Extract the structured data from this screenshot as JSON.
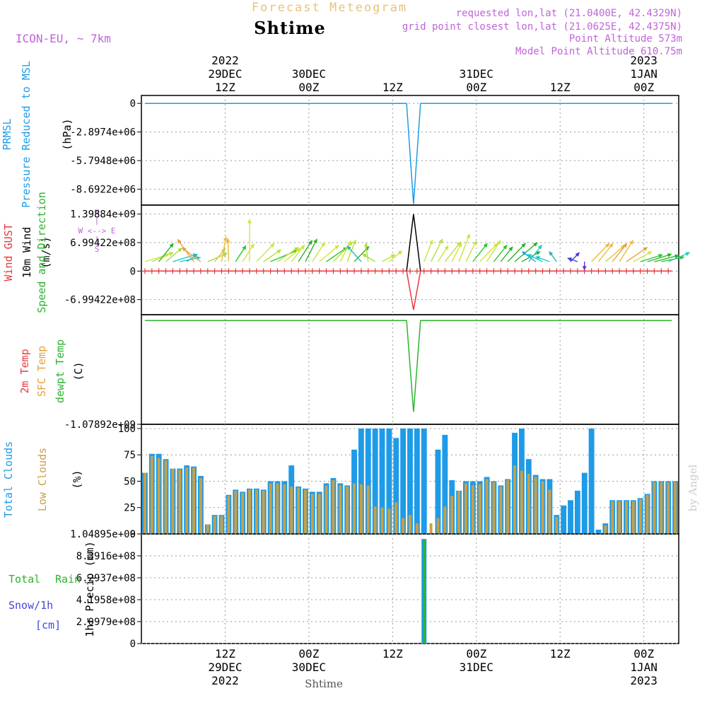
{
  "header": {
    "product": "Forecast Meteogram",
    "location": "Shtime",
    "model": "ICON-EU, ~ 7km",
    "requested": "requested lon,lat (21.0400E, 42.4329N)",
    "gridpoint": "grid point closest lon,lat (21.0625E, 42.4375N)",
    "point_alt": "Point Altitude 573m",
    "model_alt": "Model Point Altitude 610.75m",
    "footer_location": "Shtime",
    "credit": "by Angel"
  },
  "time_axis": {
    "top": [
      {
        "t": 12,
        "lines": [
          "2022",
          "29DEC",
          "12Z"
        ]
      },
      {
        "t": 24,
        "lines": [
          "30DEC",
          "00Z"
        ]
      },
      {
        "t": 36,
        "lines": [
          "12Z"
        ]
      },
      {
        "t": 48,
        "lines": [
          "31DEC",
          "00Z"
        ]
      },
      {
        "t": 60,
        "lines": [
          "12Z"
        ]
      },
      {
        "t": 72,
        "lines": [
          "2023",
          "1JAN",
          "00Z"
        ]
      }
    ],
    "bottom": [
      {
        "t": 12,
        "lines": [
          "12Z",
          "29DEC",
          "2022"
        ]
      },
      {
        "t": 24,
        "lines": [
          "00Z",
          "30DEC"
        ]
      },
      {
        "t": 36,
        "lines": [
          "12Z"
        ]
      },
      {
        "t": 48,
        "lines": [
          "00Z",
          "31DEC"
        ]
      },
      {
        "t": 60,
        "lines": [
          "12Z"
        ]
      },
      {
        "t": 72,
        "lines": [
          "00Z",
          "1JAN",
          "2023"
        ]
      }
    ]
  },
  "chart_data": [
    {
      "type": "line",
      "title": "",
      "ylabels": [
        "PRMSL",
        "Pressure Reduced to MSL",
        "(hPa)"
      ],
      "yticks": [
        "0",
        "-2.8974e+06",
        "-5.7948e+06",
        "-8.6922e+06"
      ],
      "ytick_values": [
        0,
        -2897400,
        -5794800,
        -8692200
      ],
      "ylim": [
        -10300000,
        800000
      ],
      "xlim": [
        0,
        77
      ],
      "series": [
        {
          "color": "#1e9be8",
          "points": [
            [
              0.5,
              0
            ],
            [
              38,
              0
            ],
            [
              39,
              -10200000
            ],
            [
              40,
              0
            ],
            [
              76,
              0
            ]
          ]
        }
      ]
    },
    {
      "type": "line",
      "ylabels": [
        "Wind GUST",
        "10m Wind",
        "(m/s)",
        "Speed and Direction"
      ],
      "yticks": [
        "1.39884e+09",
        "6.99422e+08",
        "0",
        "-6.99422e+08"
      ],
      "ytick_values": [
        1398840000,
        699422000,
        0,
        -699422000
      ],
      "ylim": [
        -1070000000,
        1620000000
      ],
      "xlim": [
        0,
        77
      ],
      "compass": {
        "n": "N",
        "s": "S",
        "w": "W <--> E"
      },
      "series": [
        {
          "name": "10m Wind",
          "color": "#000000",
          "points": [
            [
              0.5,
              0
            ],
            [
              38,
              0
            ],
            [
              39,
              1398840000
            ],
            [
              40,
              0
            ],
            [
              76,
              0
            ]
          ]
        },
        {
          "name": "Wind GUST",
          "color": "#e8383c",
          "points": [
            [
              0.5,
              0
            ],
            [
              38,
              0
            ],
            [
              39,
              -950000000
            ],
            [
              40,
              0
            ],
            [
              76,
              0
            ]
          ]
        }
      ],
      "gust_markers": {
        "color": "#e8383c",
        "from": 0.5,
        "to": 76,
        "step": 1,
        "low_t": 39,
        "low_v": -950000000
      },
      "arrows": [
        [
          0.5,
          0.3,
          0.6,
          "#c8e63c"
        ],
        [
          1.5,
          0.4,
          0.55,
          "#b4e13c"
        ],
        [
          2.5,
          0.9,
          0.55,
          "#28b428"
        ],
        [
          3.5,
          0.7,
          0.5,
          "#a0dc3c"
        ],
        [
          4.5,
          0.3,
          0.6,
          "#1ec8c8"
        ],
        [
          5.5,
          0.2,
          0.5,
          "#1ec8c8"
        ],
        [
          6.5,
          0.6,
          0.3,
          "#28b4b4"
        ],
        [
          7.5,
          2.2,
          0.65,
          "#e6a03c"
        ],
        [
          8.5,
          2.5,
          0.55,
          "#e6a03c"
        ],
        [
          9.5,
          0.4,
          0.5,
          "#a0dc3c"
        ],
        [
          10.5,
          0.9,
          0.4,
          "#d2c83c"
        ],
        [
          11.5,
          1.4,
          0.6,
          "#e6be3c"
        ],
        [
          12.5,
          1.6,
          0.55,
          "#e6be3c"
        ],
        [
          13.5,
          1.0,
          0.45,
          "#28c828"
        ],
        [
          14.5,
          1.0,
          0.5,
          "#d2e63c"
        ],
        [
          15.5,
          1.57,
          1.0,
          "#d2e63c"
        ],
        [
          16.5,
          0.8,
          0.6,
          "#c8e63c"
        ],
        [
          17.5,
          0.6,
          0.5,
          "#b4e13c"
        ],
        [
          18.5,
          0.4,
          0.7,
          "#28c828"
        ],
        [
          19.5,
          0.6,
          0.6,
          "#b4e13c"
        ],
        [
          20.5,
          0.7,
          0.5,
          "#d2e63c"
        ],
        [
          21.5,
          0.9,
          0.5,
          "#c8e63c"
        ],
        [
          22.5,
          1.0,
          0.6,
          "#28b428"
        ],
        [
          23.5,
          1.1,
          0.6,
          "#28b428"
        ],
        [
          24.5,
          1.0,
          0.55,
          "#c8e63c"
        ],
        [
          25.5,
          0.7,
          0.6,
          "#d2e63c"
        ],
        [
          26.5,
          0.6,
          0.6,
          "#28c828"
        ],
        [
          27.5,
          0.8,
          0.65,
          "#b4e13c"
        ],
        [
          28.5,
          1.1,
          0.55,
          "#d2e63c"
        ],
        [
          29.5,
          1.2,
          0.55,
          "#b4e13c"
        ],
        [
          30.5,
          0.8,
          0.5,
          "#28b428"
        ],
        [
          31.5,
          2.3,
          0.5,
          "#28b4b4"
        ],
        [
          32.5,
          1.7,
          0.45,
          "#b4e13c"
        ],
        [
          33.5,
          2.6,
          0.35,
          "#a0dc3c"
        ],
        [
          34.5,
          0.5,
          0.35,
          "#b4e13c"
        ],
        [
          35.5,
          0.7,
          0.4,
          "#c8e63c"
        ],
        [
          40.5,
          1.2,
          0.55,
          "#c8e63c"
        ],
        [
          41.5,
          1.1,
          0.6,
          "#b4e13c"
        ],
        [
          42.5,
          1.0,
          0.45,
          "#c8e63c"
        ],
        [
          43.5,
          0.9,
          0.6,
          "#b4e13c"
        ],
        [
          44.5,
          1.1,
          0.5,
          "#d2e63c"
        ],
        [
          45.5,
          1.2,
          0.7,
          "#c8e63c"
        ],
        [
          46.5,
          1.1,
          0.55,
          "#c8e63c"
        ],
        [
          47.5,
          0.9,
          0.55,
          "#28c828"
        ],
        [
          48.5,
          0.8,
          0.6,
          "#d2e63c"
        ],
        [
          49.5,
          1.0,
          0.6,
          "#c8e63c"
        ],
        [
          50.5,
          0.9,
          0.5,
          "#28c828"
        ],
        [
          51.5,
          0.9,
          0.45,
          "#28b428"
        ],
        [
          52.5,
          0.8,
          0.6,
          "#28b428"
        ],
        [
          53.5,
          0.7,
          0.7,
          "#28b428"
        ],
        [
          54.5,
          0.5,
          0.5,
          "#28b428"
        ],
        [
          55.5,
          0.9,
          0.5,
          "#28c8c8"
        ],
        [
          56.5,
          2.5,
          0.4,
          "#28a0dc"
        ],
        [
          57.5,
          2.7,
          0.4,
          "#1ec8c8"
        ],
        [
          58.5,
          2.8,
          0.35,
          "#1ec8c8"
        ],
        [
          59.5,
          2.2,
          0.3,
          "#28b4b4"
        ],
        [
          61.5,
          0.8,
          0.3,
          "#3c3cdc"
        ],
        [
          62.5,
          2.8,
          0.25,
          "#3c3cdc"
        ],
        [
          63.5,
          4.7,
          0.2,
          "#6432c8"
        ],
        [
          64.5,
          0.8,
          0.6,
          "#e6be3c"
        ],
        [
          65.5,
          0.9,
          0.55,
          "#e6be3c"
        ],
        [
          66.5,
          0.7,
          0.6,
          "#e6be3c"
        ],
        [
          67.5,
          0.9,
          0.55,
          "#e6a03c"
        ],
        [
          68.5,
          1.0,
          0.6,
          "#e6be3c"
        ],
        [
          69.5,
          0.6,
          0.6,
          "#e6a03c"
        ],
        [
          70.5,
          0.5,
          0.5,
          "#d2e63c"
        ],
        [
          71.5,
          0.3,
          0.55,
          "#28c828"
        ],
        [
          72.5,
          0.3,
          0.6,
          "#28b428"
        ],
        [
          73.5,
          0.25,
          0.6,
          "#28b428"
        ],
        [
          74.5,
          0.2,
          0.55,
          "#28c828"
        ],
        [
          75.5,
          0.4,
          0.55,
          "#28c8c8"
        ]
      ]
    },
    {
      "type": "line",
      "ylabels": [
        "2m Temp",
        "SFC Temp",
        "dewpt Temp",
        "(C)"
      ],
      "yticks": [
        "-1.07892e+09"
      ],
      "ytick_values": [
        -1078920000
      ],
      "ylim": [
        -1078920000,
        60000000
      ],
      "xlim": [
        0,
        77
      ],
      "series": [
        {
          "name": "dewpt Temp",
          "color": "#2db42d",
          "points": [
            [
              0.5,
              0
            ],
            [
              38,
              0
            ],
            [
              39,
              -950000000
            ],
            [
              40,
              0
            ],
            [
              76,
              0
            ]
          ]
        }
      ]
    },
    {
      "type": "bar",
      "ylabels": [
        "Total Clouds",
        "Low Clouds",
        "(%)"
      ],
      "yticks": [
        "0",
        "25",
        "50",
        "75",
        "100"
      ],
      "ytick_values": [
        0,
        25,
        50,
        75,
        100
      ],
      "ylim": [
        0,
        104
      ],
      "xlim": [
        0,
        77
      ],
      "total": [
        58,
        76,
        76,
        71,
        62,
        62,
        65,
        64,
        55,
        9,
        18,
        18,
        37,
        42,
        40,
        43,
        43,
        42,
        50,
        50,
        50,
        65,
        45,
        43,
        40,
        40,
        48,
        53,
        48,
        46,
        80,
        100,
        100,
        100,
        100,
        100,
        91,
        100,
        100,
        100,
        100,
        0,
        80,
        94,
        51,
        41,
        50,
        50,
        50,
        54,
        50,
        46,
        52,
        96,
        100,
        71,
        56,
        52,
        52,
        18,
        27,
        32,
        41,
        58,
        100,
        4,
        10,
        32,
        32,
        32,
        32,
        34,
        38,
        50,
        50,
        50,
        50
      ],
      "low": [
        58,
        74,
        72,
        70,
        62,
        61,
        63,
        63,
        53,
        9,
        17,
        17,
        36,
        41,
        39,
        42,
        42,
        41,
        48,
        48,
        47,
        45,
        44,
        42,
        38,
        38,
        46,
        51,
        46,
        45,
        48,
        47,
        46,
        26,
        25,
        24,
        30,
        15,
        18,
        10,
        0,
        10,
        15,
        26,
        36,
        41,
        48,
        46,
        47,
        52,
        49,
        45,
        51,
        65,
        60,
        57,
        54,
        50,
        42,
        16,
        0,
        0,
        0,
        0,
        0,
        0,
        8,
        31,
        31,
        31,
        31,
        33,
        37,
        49,
        49,
        49,
        49
      ]
    },
    {
      "type": "bar",
      "ylabels": [
        "1hr Precip (mm)"
      ],
      "legend": [
        "Total",
        "Rain",
        "Snow/1h",
        "[cm]"
      ],
      "yticks": [
        "1.04895e+09",
        "8.3916e+08",
        "6.2937e+08",
        "4.1958e+08",
        "2.0979e+08",
        "0"
      ],
      "ytick_values": [
        1048950000,
        839160000,
        629370000,
        419580000,
        209790000,
        0
      ],
      "ylim": [
        0,
        1048950000
      ],
      "xlim": [
        0,
        77
      ],
      "bars": [
        {
          "t": 40.5,
          "total": 1000000000,
          "rain": 1000000000
        }
      ]
    }
  ],
  "colors": {
    "title": "#e6c47a",
    "info": "#c064d8",
    "grid": "#999999",
    "total_clouds": "#1e9be8",
    "low_clouds": "#c8a046",
    "rain": "#2db42d",
    "snow": "#4646dc",
    "credit": "#cccccc"
  }
}
